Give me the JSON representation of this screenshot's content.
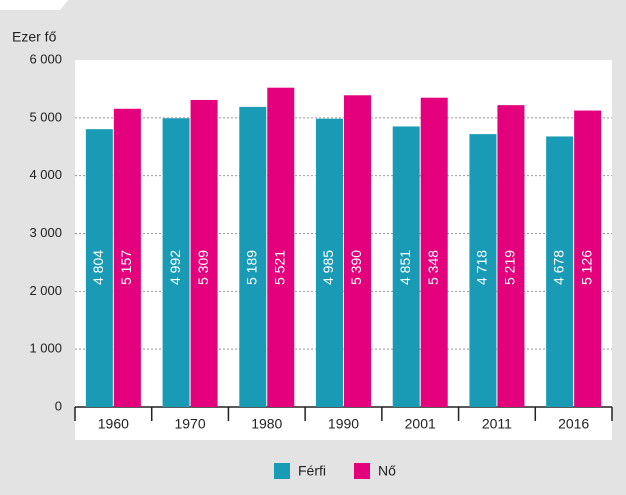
{
  "chart_data": {
    "type": "bar",
    "title": "Ezer fő",
    "categories": [
      "1960",
      "1970",
      "1980",
      "1990",
      "2001",
      "2011",
      "2016"
    ],
    "series": [
      {
        "name": "Férfi",
        "color": "#1a9bb5",
        "values": [
          4804,
          4992,
          5189,
          4985,
          4851,
          4718,
          4678
        ],
        "value_labels": [
          "4 804",
          "4 992",
          "5 189",
          "4 985",
          "4 851",
          "4 718",
          "4 678"
        ]
      },
      {
        "name": "Nő",
        "color": "#e4007d",
        "values": [
          5157,
          5309,
          5521,
          5390,
          5348,
          5219,
          5126
        ],
        "value_labels": [
          "5 157",
          "5 309",
          "5 521",
          "5 390",
          "5 348",
          "5 219",
          "5 126"
        ]
      }
    ],
    "ylim": [
      0,
      6000
    ],
    "yticks": [
      0,
      {
        "value": 1000,
        "label": "1 000"
      },
      {
        "value": 2000,
        "label": "2 000"
      },
      {
        "value": 3000,
        "label": "3 000"
      },
      {
        "value": 4000,
        "label": "4 000"
      },
      {
        "value": 5000,
        "label": "5 000"
      },
      {
        "value": 6000,
        "label": "6 000"
      }
    ],
    "grid": true,
    "legend": "bottom"
  }
}
